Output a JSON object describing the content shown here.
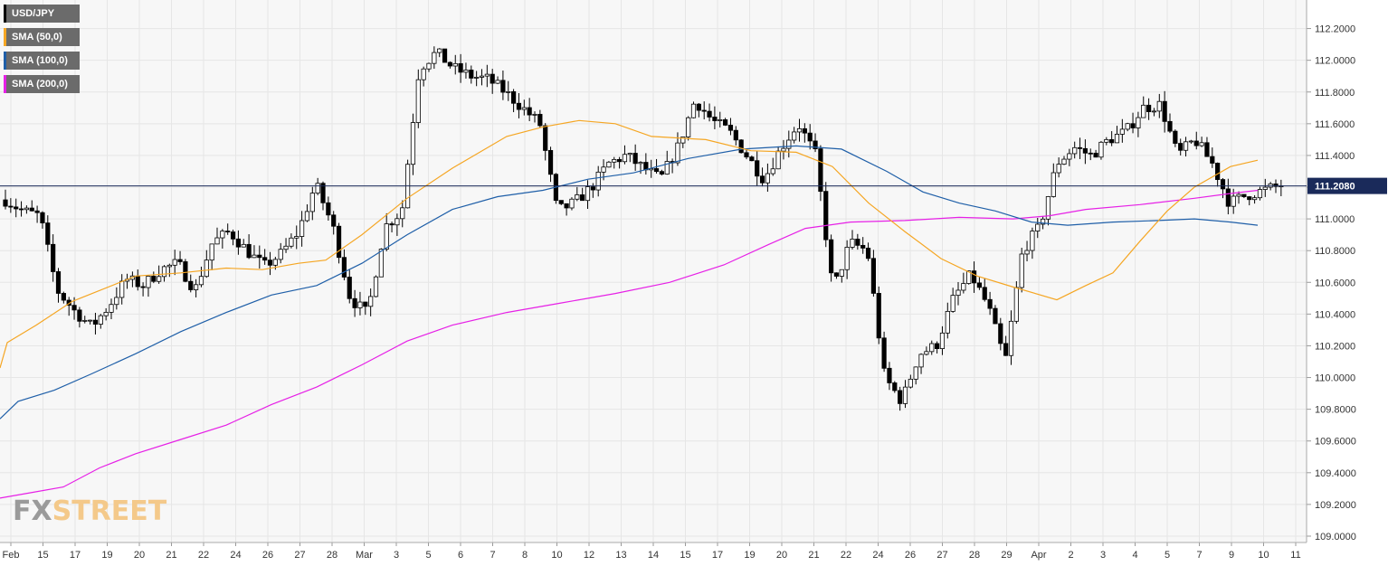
{
  "chart_data": {
    "type": "candlestick",
    "symbol": "USD/JPY",
    "current_price": 111.208,
    "current_price_label": "111.2080",
    "ylim": [
      108.96,
      112.38
    ],
    "y_ticks": [
      "112.2000",
      "112.0000",
      "111.8000",
      "111.6000",
      "111.4000",
      "111.2000",
      "111.0000",
      "110.8000",
      "110.6000",
      "110.4000",
      "110.2000",
      "110.0000",
      "109.8000",
      "109.6000",
      "109.4000",
      "109.2000",
      "109.0000"
    ],
    "x_ticks": [
      "Feb",
      "15",
      "17",
      "19",
      "20",
      "21",
      "22",
      "24",
      "26",
      "27",
      "28",
      "Mar",
      "3",
      "5",
      "6",
      "7",
      "8",
      "10",
      "12",
      "13",
      "14",
      "15",
      "17",
      "19",
      "20",
      "21",
      "22",
      "24",
      "26",
      "27",
      "28",
      "29",
      "Apr",
      "2",
      "3",
      "4",
      "5",
      "7",
      "9",
      "10",
      "11"
    ],
    "legend": [
      {
        "label": "USD/JPY",
        "color": "#000000"
      },
      {
        "label": "SMA (50,0)",
        "color": "#f5a623"
      },
      {
        "label": "SMA (100,0)",
        "color": "#1f5fa8"
      },
      {
        "label": "SMA (200,0)",
        "color": "#e620e6"
      }
    ],
    "colors": {
      "bull_candle": "#ffffff",
      "bear_candle": "#000000",
      "sma50": "#f5a623",
      "sma100": "#1f5fa8",
      "sma200": "#e620e6",
      "price_line": "#1a2a5a",
      "grid": "#e6e6e6",
      "plot_bg": "#f7f7f7"
    },
    "close_path": [
      111.12,
      111.05,
      111.02,
      110.55,
      110.42,
      110.32,
      110.45,
      110.62,
      110.58,
      110.68,
      110.72,
      110.55,
      110.85,
      110.92,
      110.8,
      110.7,
      110.78,
      110.92,
      111.22,
      110.95,
      110.5,
      110.4,
      110.95,
      111.05,
      111.95,
      112.05,
      111.95,
      111.9,
      111.88,
      111.8,
      111.7,
      111.6,
      111.05,
      111.1,
      111.2,
      111.35,
      111.4,
      111.32,
      111.25,
      111.45,
      111.75,
      111.62,
      111.55,
      111.4,
      111.25,
      111.45,
      111.6,
      111.4,
      110.55,
      110.85,
      110.8,
      110.0,
      109.85,
      110.15,
      110.2,
      110.5,
      110.65,
      110.45,
      110.1,
      110.8,
      110.95,
      111.35,
      111.45,
      111.4,
      111.5,
      111.55,
      111.7,
      111.72,
      111.4,
      111.5,
      111.35,
      111.1,
      111.15,
      111.18,
      111.21
    ],
    "sma50": [
      [
        0,
        110.06
      ],
      [
        8,
        110.22
      ],
      [
        40,
        110.33
      ],
      [
        80,
        110.48
      ],
      [
        150,
        110.64
      ],
      [
        200,
        110.66
      ],
      [
        250,
        110.69
      ],
      [
        290,
        110.68
      ],
      [
        330,
        110.72
      ],
      [
        360,
        110.74
      ],
      [
        400,
        110.9
      ],
      [
        450,
        111.13
      ],
      [
        500,
        111.32
      ],
      [
        560,
        111.52
      ],
      [
        600,
        111.58
      ],
      [
        640,
        111.62
      ],
      [
        680,
        111.6
      ],
      [
        720,
        111.52
      ],
      [
        780,
        111.5
      ],
      [
        830,
        111.43
      ],
      [
        880,
        111.42
      ],
      [
        920,
        111.33
      ],
      [
        960,
        111.1
      ],
      [
        1000,
        110.92
      ],
      [
        1040,
        110.75
      ],
      [
        1080,
        110.64
      ],
      [
        1120,
        110.57
      ],
      [
        1168,
        110.49
      ],
      [
        1200,
        110.58
      ],
      [
        1230,
        110.66
      ],
      [
        1260,
        110.86
      ],
      [
        1290,
        111.05
      ],
      [
        1320,
        111.2
      ],
      [
        1360,
        111.33
      ],
      [
        1390,
        111.37
      ]
    ],
    "sma100": [
      [
        0,
        109.74
      ],
      [
        20,
        109.85
      ],
      [
        60,
        109.92
      ],
      [
        100,
        110.02
      ],
      [
        150,
        110.15
      ],
      [
        200,
        110.29
      ],
      [
        250,
        110.41
      ],
      [
        300,
        110.52
      ],
      [
        350,
        110.58
      ],
      [
        400,
        110.72
      ],
      [
        450,
        110.9
      ],
      [
        500,
        111.06
      ],
      [
        550,
        111.14
      ],
      [
        600,
        111.18
      ],
      [
        650,
        111.25
      ],
      [
        700,
        111.29
      ],
      [
        760,
        111.38
      ],
      [
        820,
        111.44
      ],
      [
        880,
        111.46
      ],
      [
        930,
        111.44
      ],
      [
        980,
        111.3
      ],
      [
        1020,
        111.17
      ],
      [
        1060,
        111.1
      ],
      [
        1100,
        111.05
      ],
      [
        1140,
        110.98
      ],
      [
        1180,
        110.96
      ],
      [
        1230,
        110.98
      ],
      [
        1280,
        110.99
      ],
      [
        1320,
        111.0
      ],
      [
        1360,
        110.98
      ],
      [
        1390,
        110.96
      ]
    ],
    "sma200": [
      [
        0,
        109.24
      ],
      [
        30,
        109.27
      ],
      [
        70,
        109.31
      ],
      [
        110,
        109.43
      ],
      [
        150,
        109.52
      ],
      [
        200,
        109.61
      ],
      [
        250,
        109.7
      ],
      [
        300,
        109.83
      ],
      [
        350,
        109.94
      ],
      [
        400,
        110.08
      ],
      [
        450,
        110.23
      ],
      [
        500,
        110.33
      ],
      [
        560,
        110.41
      ],
      [
        620,
        110.47
      ],
      [
        680,
        110.53
      ],
      [
        740,
        110.6
      ],
      [
        800,
        110.71
      ],
      [
        850,
        110.84
      ],
      [
        890,
        110.94
      ],
      [
        940,
        110.98
      ],
      [
        1000,
        110.99
      ],
      [
        1060,
        111.01
      ],
      [
        1120,
        111.0
      ],
      [
        1160,
        111.02
      ],
      [
        1200,
        111.06
      ],
      [
        1260,
        111.09
      ],
      [
        1320,
        111.13
      ],
      [
        1360,
        111.16
      ],
      [
        1390,
        111.18
      ]
    ]
  },
  "watermark": {
    "part1": "FX",
    "part2": "STREET"
  }
}
